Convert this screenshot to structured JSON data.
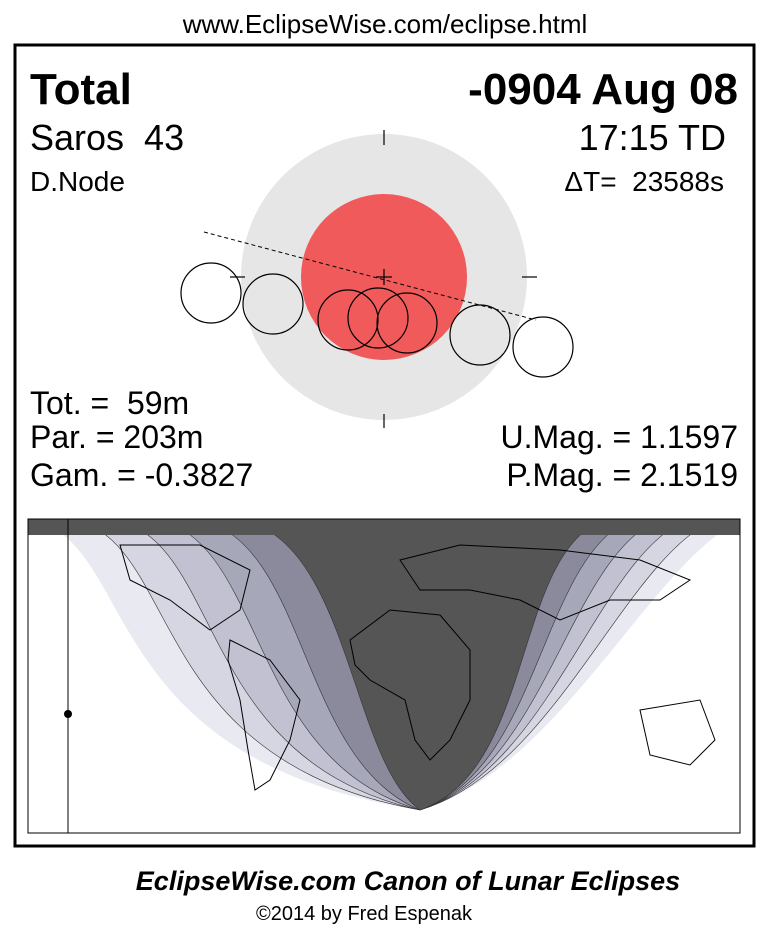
{
  "header": {
    "url": "www.EclipseWise.com/eclipse.html"
  },
  "eclipse": {
    "type": "Total",
    "date": "-0904 Aug 08",
    "saros": "Saros  43",
    "time": "17:15 TD",
    "node": "D.Node",
    "delta_t": "ΔT=  23588s",
    "totality": "Tot. =  59m",
    "partial": "Par. = 203m",
    "gamma": "Gam. = -0.3827",
    "umbral_mag": "U.Mag. = 1.1597",
    "penumbral_mag": "P.Mag. = 2.1519"
  },
  "footer": {
    "title": "EclipseWise.com Canon of Lunar Eclipses",
    "copyright": "©2014 by Fred Espenak"
  }
}
